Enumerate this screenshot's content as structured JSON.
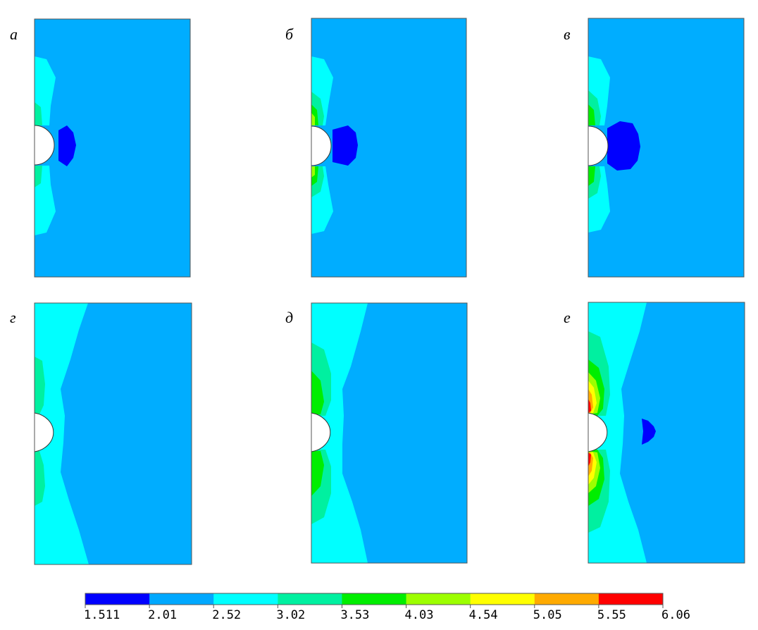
{
  "figure": {
    "panels": [
      {
        "label": "а"
      },
      {
        "label": "б"
      },
      {
        "label": "в"
      },
      {
        "label": "г"
      },
      {
        "label": "д"
      },
      {
        "label": "е"
      }
    ]
  },
  "colorbar": {
    "ticks": [
      "1.511",
      "2.01",
      "2.52",
      "3.02",
      "3.53",
      "4.03",
      "4.54",
      "5.05",
      "5.55",
      "6.06"
    ],
    "colors": [
      "#0000ff",
      "#00a8ff",
      "#00ffff",
      "#00f0a0",
      "#00ee00",
      "#9dff00",
      "#ffff00",
      "#ffaa00",
      "#ff0000"
    ]
  },
  "colors": {
    "background_field": "#00adff",
    "low": "#0000ff",
    "level3": "#00ffff",
    "level4": "#00f0a0",
    "level5": "#00ee00",
    "level6": "#9dff00",
    "level7": "#ffff00",
    "level8": "#ffaa00",
    "level9": "#ff0000"
  }
}
